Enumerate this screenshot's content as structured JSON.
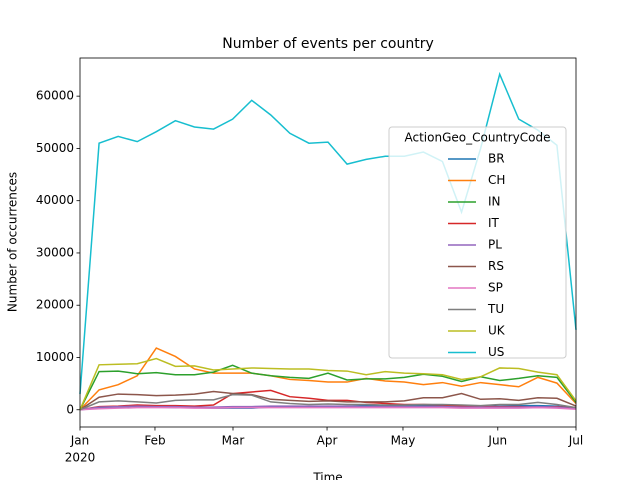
{
  "chart_data": {
    "type": "line",
    "title": "Number of events per country",
    "x_label": "Time",
    "y_label": "Number of occurrences",
    "legend_title": "ActionGeo_CountryCode",
    "legend_position": "right",
    "x": [
      0,
      1,
      2,
      3,
      4,
      5,
      6,
      7,
      8,
      9,
      10,
      11,
      12,
      13,
      14,
      15,
      16,
      17,
      18,
      19,
      20,
      21,
      22,
      23,
      24,
      25,
      26
    ],
    "xlim": [
      0,
      26
    ],
    "xticks": [
      {
        "value": 0,
        "label": "Jan"
      },
      {
        "value": 3.93,
        "label": "Feb"
      },
      {
        "value": 8.02,
        "label": "Mar"
      },
      {
        "value": 12.95,
        "label": "Apr"
      },
      {
        "value": 16.93,
        "label": "May"
      },
      {
        "value": 21.9,
        "label": "Jun"
      },
      {
        "value": 26,
        "label": "Jul"
      }
    ],
    "xtick_sublabel": "2020",
    "ylim": [
      -3300,
      67300
    ],
    "yticks": [
      0,
      10000,
      20000,
      30000,
      40000,
      50000,
      60000
    ],
    "series": [
      {
        "name": "BR",
        "color": "#1f77b4",
        "values": [
          0,
          300,
          400,
          700,
          500,
          400,
          400,
          300,
          300,
          300,
          500,
          600,
          600,
          600,
          700,
          800,
          700,
          700,
          800,
          700,
          600,
          600,
          700,
          800,
          800,
          700,
          300
        ]
      },
      {
        "name": "CH",
        "color": "#ff7f0e",
        "values": [
          0,
          3800,
          4800,
          6500,
          11800,
          10200,
          7800,
          7000,
          7000,
          7000,
          6500,
          5800,
          5600,
          5300,
          5300,
          6000,
          5500,
          5300,
          4800,
          5200,
          4500,
          5200,
          4800,
          4400,
          6200,
          5100,
          1200
        ]
      },
      {
        "name": "IN",
        "color": "#2ca02c",
        "values": [
          0,
          7300,
          7400,
          6900,
          7100,
          6700,
          6700,
          7200,
          8500,
          7000,
          6500,
          6200,
          6000,
          7000,
          5700,
          5900,
          5900,
          6200,
          6800,
          6400,
          5400,
          6300,
          5600,
          6000,
          6500,
          6200,
          1400
        ]
      },
      {
        "name": "IT",
        "color": "#d62728",
        "values": [
          0,
          600,
          700,
          900,
          800,
          800,
          700,
          900,
          3100,
          3400,
          3700,
          2500,
          2200,
          1800,
          1800,
          1400,
          1200,
          1000,
          1000,
          900,
          700,
          600,
          600,
          600,
          500,
          600,
          200
        ]
      },
      {
        "name": "PL",
        "color": "#9467bd",
        "values": [
          0,
          500,
          600,
          700,
          600,
          600,
          500,
          500,
          600,
          600,
          700,
          700,
          700,
          700,
          700,
          600,
          600,
          600,
          600,
          600,
          500,
          500,
          500,
          500,
          600,
          500,
          200
        ]
      },
      {
        "name": "RS",
        "color": "#8c564b",
        "values": [
          0,
          2400,
          3000,
          2900,
          2700,
          2800,
          3000,
          3500,
          3100,
          2900,
          2000,
          1800,
          1600,
          1700,
          1500,
          1500,
          1500,
          1700,
          2300,
          2300,
          3100,
          2000,
          2100,
          1800,
          2300,
          2200,
          700
        ]
      },
      {
        "name": "SP",
        "color": "#e377c2",
        "values": [
          0,
          200,
          300,
          400,
          400,
          400,
          300,
          300,
          400,
          400,
          400,
          400,
          400,
          400,
          400,
          400,
          400,
          400,
          400,
          400,
          300,
          300,
          300,
          300,
          400,
          300,
          100
        ]
      },
      {
        "name": "TU",
        "color": "#7f7f7f",
        "values": [
          0,
          1500,
          1700,
          1500,
          1300,
          1800,
          1900,
          1900,
          2900,
          2800,
          1500,
          1200,
          1000,
          1100,
          1000,
          1000,
          900,
          900,
          1000,
          1000,
          900,
          800,
          1000,
          1000,
          1400,
          1000,
          400
        ]
      },
      {
        "name": "UK",
        "color": "#bcbd22",
        "values": [
          0,
          8600,
          8700,
          8800,
          9800,
          8300,
          8400,
          7600,
          7800,
          8000,
          7900,
          7800,
          7800,
          7500,
          7400,
          6700,
          7300,
          7000,
          6900,
          6700,
          5800,
          6300,
          8000,
          7900,
          7200,
          6700,
          1700
        ]
      },
      {
        "name": "US",
        "color": "#17becf",
        "values": [
          3000,
          51000,
          52300,
          51300,
          53200,
          55300,
          54100,
          53700,
          55600,
          59200,
          56400,
          52900,
          51000,
          51200,
          47000,
          47900,
          48500,
          48500,
          49300,
          47500,
          37800,
          50000,
          64200,
          55600,
          53500,
          50600,
          15300
        ]
      }
    ]
  }
}
